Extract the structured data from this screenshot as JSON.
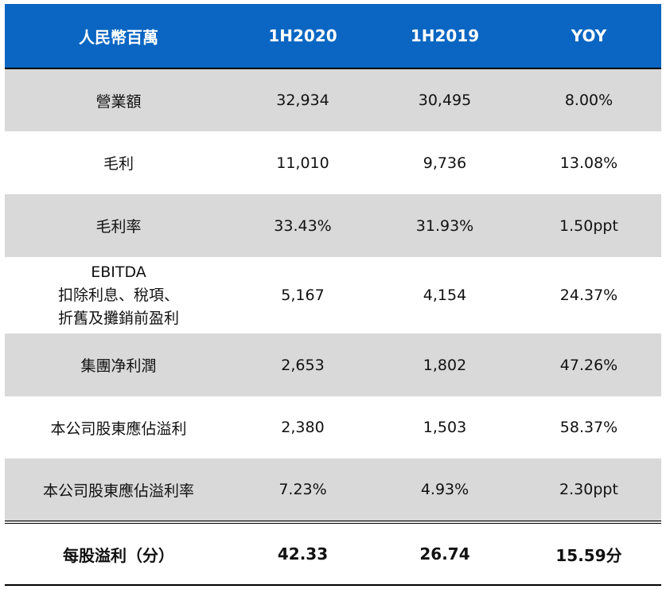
{
  "table": {
    "headers": [
      "人民幣百萬",
      "1H2020",
      "1H2019",
      "YOY"
    ],
    "rows": [
      {
        "label": "營業額",
        "h2020": "32,934",
        "h2019": "30,495",
        "yoy": "8.00%"
      },
      {
        "label": "毛利",
        "h2020": "11,010",
        "h2019": "9,736",
        "yoy": "13.08%"
      },
      {
        "label": "毛利率",
        "h2020": "33.43%",
        "h2019": "31.93%",
        "yoy": "1.50ppt"
      },
      {
        "label_lines": [
          "EBITDA",
          "扣除利息、稅項、",
          "折舊及攤銷前盈利"
        ],
        "h2020": "5,167",
        "h2019": "4,154",
        "yoy": "24.37%"
      },
      {
        "label": "集團净利潤",
        "h2020": "2,653",
        "h2019": "1,802",
        "yoy": "47.26%"
      },
      {
        "label": "本公司股東應佔溢利",
        "h2020": "2,380",
        "h2019": "1,503",
        "yoy": "58.37%"
      },
      {
        "label": "本公司股東應佔溢利率",
        "h2020": "7.23%",
        "h2019": "4.93%",
        "yoy": "2.30ppt"
      }
    ],
    "total": {
      "label": "每股溢利（分）",
      "h2020": "42.33",
      "h2019": "26.74",
      "yoy": "15.59分"
    }
  },
  "colors": {
    "header_bg": "#0a66c2",
    "header_text": "#ffffff",
    "row_shade": "#d9d9d9",
    "row_plain": "#ffffff"
  }
}
